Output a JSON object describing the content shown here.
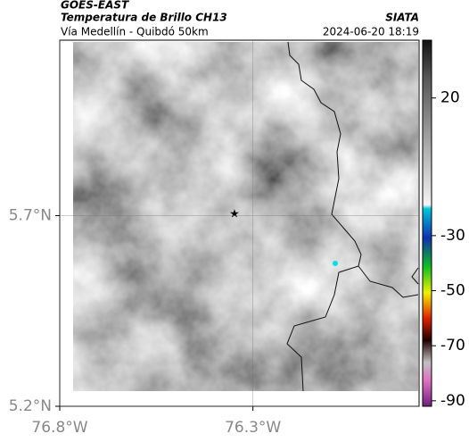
{
  "header": {
    "source": "GOES-EAST",
    "title": "Temperatura de Brillo CH13",
    "subtitle": "Vía Medellín - Quibdó 50km",
    "agency": "SIATA",
    "datetime": "2024-06-20 18:19"
  },
  "map": {
    "xlim": [
      -76.8,
      -75.87
    ],
    "ylim": [
      5.2,
      6.16
    ],
    "xticks": [
      {
        "value": -76.8,
        "label": "76.8°W"
      },
      {
        "value": -76.3,
        "label": "76.3°W"
      }
    ],
    "yticks": [
      {
        "value": 5.2,
        "label": "5.2°N"
      },
      {
        "value": 5.7,
        "label": "5.7°N"
      }
    ],
    "grid": true
  },
  "colorbar": {
    "lim": [
      -92,
      41
    ],
    "ticks": [
      20,
      -30,
      -50,
      -70,
      -90
    ]
  }
}
